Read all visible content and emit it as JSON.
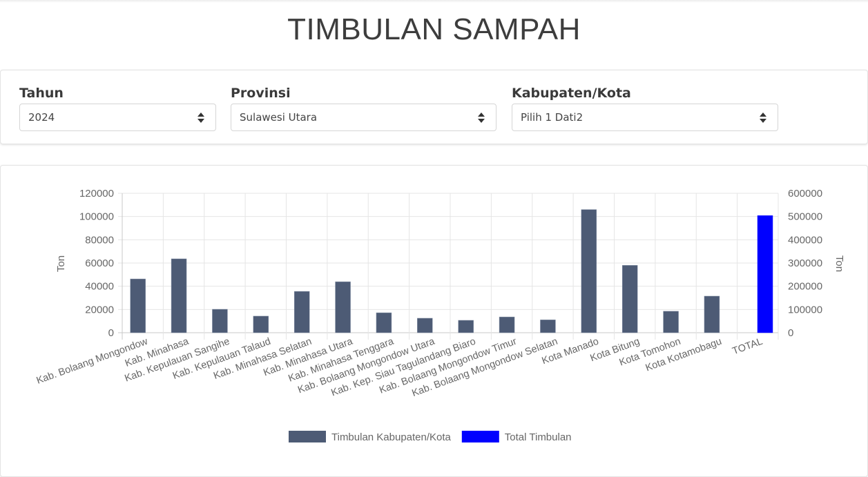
{
  "page": {
    "title": "TIMBULAN SAMPAH"
  },
  "filters": {
    "tahun": {
      "label": "Tahun",
      "value": "2024"
    },
    "provinsi": {
      "label": "Provinsi",
      "value": "Sulawesi Utara"
    },
    "kabupaten": {
      "label": "Kabupaten/Kota",
      "value": "Pilih 1 Dati2"
    }
  },
  "colors": {
    "kabupaten_bar": "#4d5b75",
    "total_bar": "#0000ff",
    "grid": "#e5e5e5",
    "tick_text": "#666666"
  },
  "chart_data": {
    "type": "bar",
    "title": "",
    "xlabel": "",
    "ylabel": "Ton",
    "y2label": "Ton",
    "ylim": [
      0,
      120000
    ],
    "y2lim": [
      0,
      600000
    ],
    "yticks": [
      0,
      20000,
      40000,
      60000,
      80000,
      100000,
      120000
    ],
    "y2ticks": [
      0,
      100000,
      200000,
      300000,
      400000,
      500000,
      600000
    ],
    "grid": true,
    "legend_position": "bottom",
    "categories": [
      "Kab. Bolaang Mongondow",
      "Kab. Minahasa",
      "Kab. Kepulauan Sangihe",
      "Kab. Kepulauan Talaud",
      "Kab. Minahasa Selatan",
      "Kab. Minahasa Utara",
      "Kab. Minahasa Tenggara",
      "Kab. Bolaang Mongondow Utara",
      "Kab. Kep. Siau Tagulandang Biaro",
      "Kab. Bolaang Mongondow Timur",
      "Kab. Bolaang Mongondow Selatan",
      "Kota Manado",
      "Kota Bitung",
      "Kota Tomohon",
      "Kota Kotamobagu",
      "TOTAL"
    ],
    "series": [
      {
        "name": "Timbulan Kabupaten/Kota",
        "axis": "left",
        "color": "#4d5b75",
        "values": [
          46300,
          63600,
          20200,
          14300,
          35600,
          43900,
          17200,
          12500,
          10700,
          13600,
          11100,
          106000,
          58000,
          18500,
          31500,
          null
        ]
      },
      {
        "name": "Total Timbulan",
        "axis": "right",
        "color": "#0000ff",
        "values": [
          null,
          null,
          null,
          null,
          null,
          null,
          null,
          null,
          null,
          null,
          null,
          null,
          null,
          null,
          null,
          504000
        ]
      }
    ]
  }
}
